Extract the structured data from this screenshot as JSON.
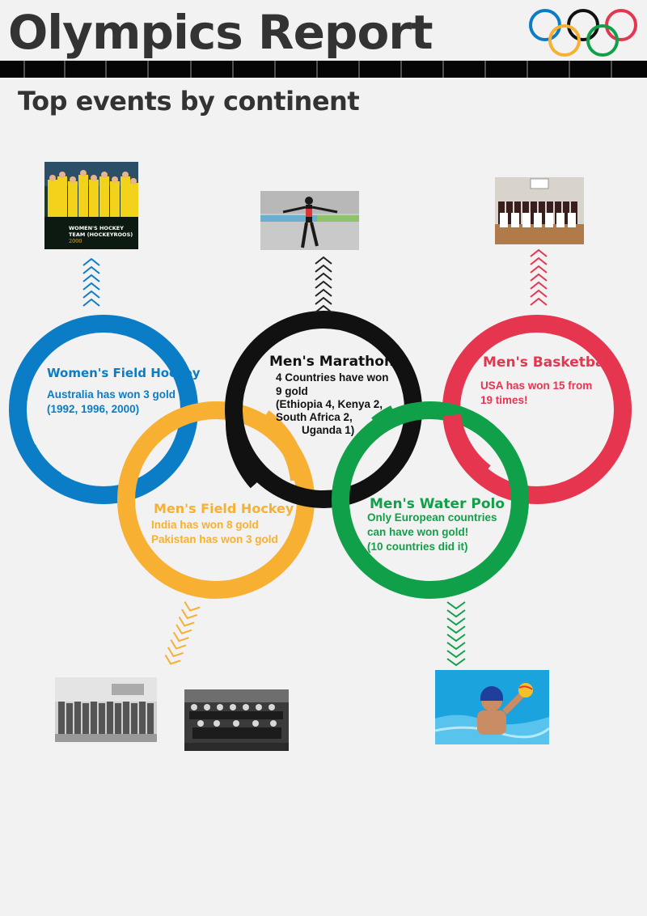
{
  "header": {
    "title": "Olympics Report",
    "subtitle": "Top events by continent"
  },
  "colors": {
    "blue": "#0a7dc6",
    "black": "#111111",
    "red": "#e6354f",
    "yellow": "#f7b032",
    "green": "#11a04a"
  },
  "events": {
    "womens_field_hockey": {
      "title": "Women's Field Hockey",
      "line1": "Australia has won 3 gold",
      "line2": "(1992,  1996,  2000)",
      "photo_caption_1": "WOMEN'S HOCKEY",
      "photo_caption_2": "TEAM (HOCKEYROOS)",
      "photo_caption_3": "2000"
    },
    "mens_marathon": {
      "title": "Men's Marathon",
      "line1": "4 Countries have won",
      "line2": "9 gold",
      "line3": "(Ethiopia 4, Kenya 2,",
      "line4": "South Africa 2,",
      "line5": "Uganda 1)"
    },
    "mens_basketball": {
      "title": "Men's Basketball",
      "line1": "USA has won 15 from",
      "line2": "19 times!"
    },
    "mens_field_hockey": {
      "title": "Men's Field Hockey",
      "line1": "India has won 8 gold",
      "line2": "Pakistan has won 3 gold"
    },
    "mens_water_polo": {
      "title": "Men's Water Polo",
      "line1": "Only European countries",
      "line2": "can have won gold!",
      "line3": "(10 countries did it)"
    }
  }
}
